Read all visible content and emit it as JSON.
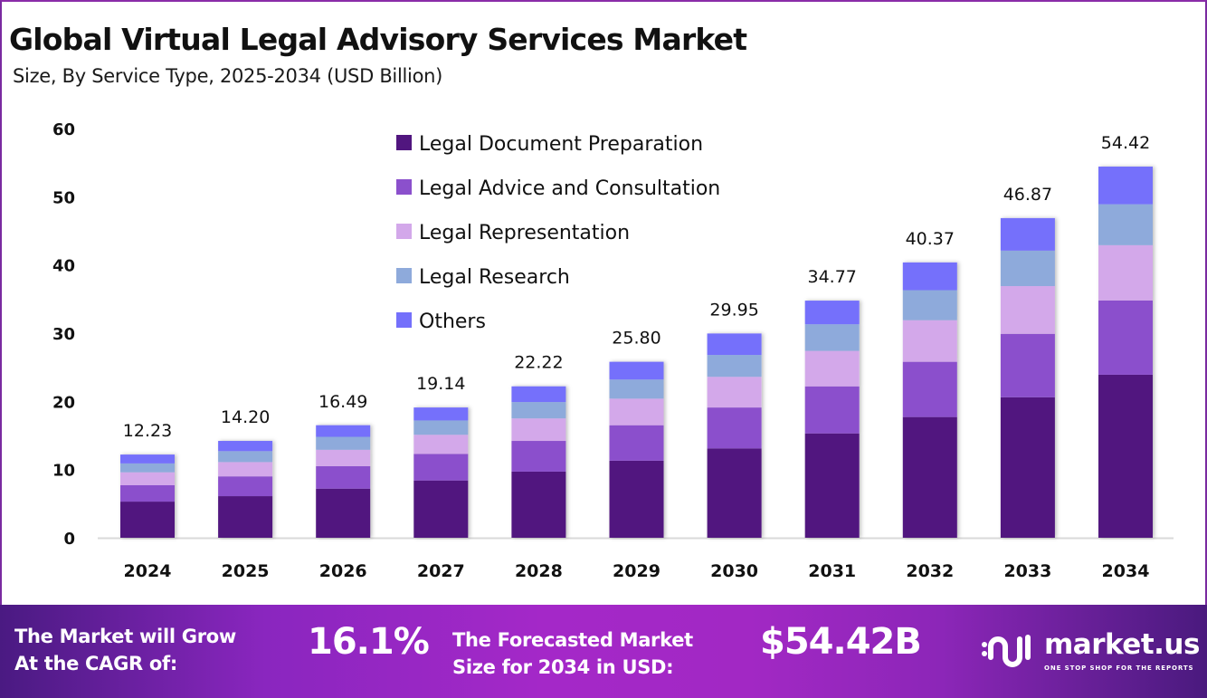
{
  "header": {
    "title": "Global Virtual Legal Advisory Services Market",
    "subtitle": "Size, By Service Type, 2025-2034 (USD Billion)"
  },
  "chart_data": {
    "type": "bar",
    "stacked": true,
    "title": "Global Virtual Legal Advisory Services Market",
    "subtitle": "Size, By Service Type, 2025-2034 (USD Billion)",
    "xlabel": "",
    "ylabel": "",
    "ylim": [
      0,
      60
    ],
    "yticks": [
      0,
      10,
      20,
      30,
      40,
      50,
      60
    ],
    "grid": false,
    "legend_position": "top-center",
    "categories": [
      "2024",
      "2025",
      "2026",
      "2027",
      "2028",
      "2029",
      "2030",
      "2031",
      "2032",
      "2033",
      "2034"
    ],
    "totals": [
      "12.23",
      "14.20",
      "16.49",
      "19.14",
      "22.22",
      "25.80",
      "29.95",
      "34.77",
      "40.37",
      "46.87",
      "54.42"
    ],
    "series": [
      {
        "name": "Legal Document Preparation",
        "color": "#51167f",
        "values": [
          5.3,
          6.1,
          7.2,
          8.4,
          9.7,
          11.3,
          13.1,
          15.3,
          17.7,
          20.6,
          23.9
        ]
      },
      {
        "name": "Legal Advice and Consultation",
        "color": "#8b50cc",
        "values": [
          2.4,
          2.9,
          3.3,
          3.9,
          4.5,
          5.2,
          6.0,
          6.9,
          8.1,
          9.3,
          10.9
        ]
      },
      {
        "name": "Legal Representation",
        "color": "#d3a8ea",
        "values": [
          1.9,
          2.1,
          2.4,
          2.8,
          3.3,
          3.9,
          4.5,
          5.2,
          6.1,
          7.0,
          8.1
        ]
      },
      {
        "name": "Legal Research",
        "color": "#8eaadb",
        "values": [
          1.3,
          1.6,
          1.9,
          2.1,
          2.4,
          2.8,
          3.2,
          3.9,
          4.4,
          5.2,
          6.0
        ]
      },
      {
        "name": "Others",
        "color": "#7470fb",
        "values": [
          1.3,
          1.5,
          1.7,
          1.9,
          2.3,
          2.6,
          3.15,
          3.47,
          4.07,
          4.77,
          5.52
        ]
      }
    ]
  },
  "footer": {
    "cagr_label_line1": "The Market will Grow",
    "cagr_label_line2": "At the CAGR of:",
    "cagr_value": "16.1%",
    "forecast_label_line1": "The Forecasted Market",
    "forecast_label_line2": "Size for 2034 in USD:",
    "forecast_value": "$54.42B",
    "brand_name": "market.us",
    "brand_tagline": "ONE STOP SHOP FOR THE REPORTS"
  }
}
